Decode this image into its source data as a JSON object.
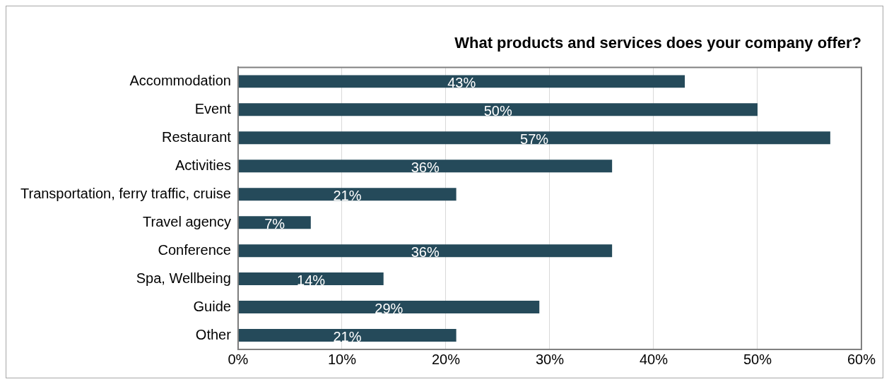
{
  "chart_data": {
    "type": "bar",
    "orientation": "horizontal",
    "title": "What products and services does your company offer?",
    "categories": [
      "Accommodation",
      "Event",
      "Restaurant",
      "Activities",
      "Transportation, ferry traffic, cruise",
      "Travel agency",
      "Conference",
      "Spa, Wellbeing",
      "Guide",
      "Other"
    ],
    "values": [
      43,
      50,
      57,
      36,
      21,
      7,
      36,
      14,
      29,
      21
    ],
    "value_labels": [
      "43%",
      "50%",
      "57%",
      "36%",
      "21%",
      "7%",
      "36%",
      "14%",
      "29%",
      "21%"
    ],
    "color": "#254a5a",
    "xlim": [
      0,
      60
    ],
    "xticks": [
      {
        "value": 0,
        "label": "0%"
      },
      {
        "value": 10,
        "label": "10%"
      },
      {
        "value": 20,
        "label": "20%"
      },
      {
        "value": 30,
        "label": "30%"
      },
      {
        "value": 40,
        "label": "40%"
      },
      {
        "value": 50,
        "label": "50%"
      },
      {
        "value": 60,
        "label": "60%"
      }
    ],
    "grid": "x",
    "legend": false
  }
}
